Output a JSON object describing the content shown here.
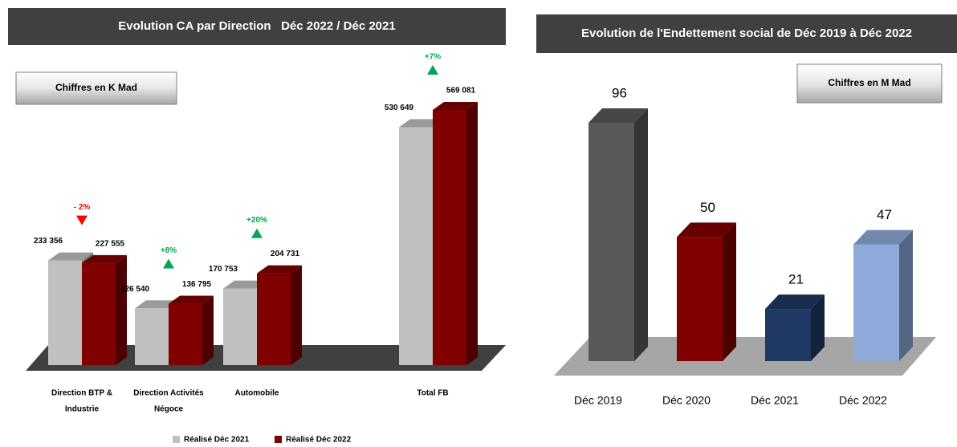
{
  "chart_data": [
    {
      "type": "bar3d",
      "title": "Evolution CA par Direction   Déc 2022 / Déc 2021",
      "note": "Chiffres en K Mad",
      "categories": [
        [
          "Direction BTP &",
          "Industrie"
        ],
        [
          "Direction Activités",
          "Négoce"
        ],
        [
          "Automobile"
        ],
        [
          "Total FB"
        ]
      ],
      "series": [
        {
          "name": "Réalisé Déc 2021",
          "color": "#c0c0c0",
          "values": [
            233356,
            126540,
            170753,
            530649
          ],
          "value_labels": [
            "233 356",
            "126 540",
            "170 753",
            "530 649"
          ]
        },
        {
          "name": "Réalisé Déc 2022",
          "color": "#800000",
          "values": [
            227555,
            136795,
            204731,
            569081
          ],
          "value_labels": [
            "227 555",
            "136 795",
            "204 731",
            "569 081"
          ]
        }
      ],
      "annotations": [
        {
          "text": "- 2%",
          "color": "#ff0000",
          "direction": "down"
        },
        {
          "text": "+8%",
          "color": "#00a651",
          "direction": "up"
        },
        {
          "text": "+20%",
          "color": "#00a651",
          "direction": "up"
        },
        {
          "text": "+7%",
          "color": "#00a651",
          "direction": "up"
        }
      ]
    },
    {
      "type": "bar3d",
      "title": "Evolution de l'Endettement social de Déc 2019 à Déc 2022",
      "note": "Chiffres en M Mad",
      "categories": [
        "Déc 2019",
        "Déc 2020",
        "Déc 2021",
        "Déc 2022"
      ],
      "values": [
        96,
        50,
        21,
        47
      ],
      "colors": [
        "#595959",
        "#800000",
        "#1f3864",
        "#8eaadb"
      ]
    }
  ]
}
